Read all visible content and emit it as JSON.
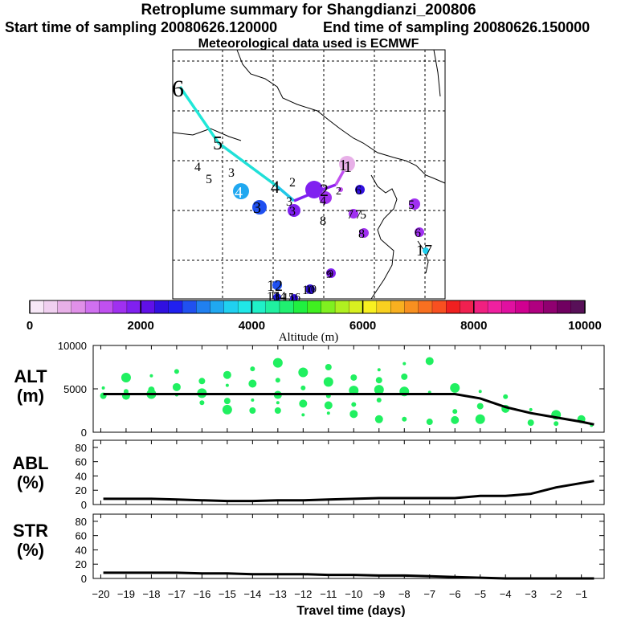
{
  "header": {
    "title": "Retroplume summary for Shangdianzi_200806",
    "start_label": "Start time of sampling 20080626.120000",
    "end_label": "End time of sampling 20080626.150000",
    "met_label": "Meteorological data used is ECMWF"
  },
  "colorbar": {
    "label": "Altitude (m)",
    "min": 0,
    "max": 10000,
    "ticks": [
      "0",
      "2000",
      "4000",
      "6000",
      "8000",
      "10000"
    ],
    "colors": [
      "#f7e8f7",
      "#f0d0f0",
      "#e8b0e8",
      "#e090e8",
      "#d070f0",
      "#c050f0",
      "#a030f0",
      "#8020f0",
      "#6010e8",
      "#3010e0",
      "#2020f0",
      "#2050f0",
      "#2080f0",
      "#20a8f0",
      "#20d0f0",
      "#20e8e8",
      "#20f0c8",
      "#20f0a0",
      "#20f070",
      "#20f040",
      "#40f020",
      "#80f020",
      "#b0f020",
      "#d8f020",
      "#f8f020",
      "#f8d020",
      "#f8b020",
      "#f89020",
      "#f87020",
      "#f85020",
      "#f02020",
      "#f02050",
      "#f02080",
      "#f020a0",
      "#e010a0",
      "#d00090",
      "#b00080",
      "#900070",
      "#700060",
      "#581058"
    ]
  },
  "map": {
    "track_labels": [
      "6",
      "5",
      "4",
      "4",
      "3",
      "4",
      "5",
      "3",
      "2",
      "1",
      "1",
      "2",
      "3",
      "2",
      "3",
      "4",
      "5",
      "6",
      "7",
      "8",
      "9",
      "8",
      "10",
      "7",
      "6",
      "5",
      "17",
      "12",
      "13",
      "14",
      "15",
      "16",
      "11",
      "10",
      "9"
    ],
    "note": "Retroplume centroid trajectory with cluster symbols sized by mass fraction"
  },
  "chart_data": [
    {
      "type": "line",
      "panel": "ALT",
      "ylabel_line1": "ALT",
      "ylabel_line2": "(m)",
      "ylim": [
        0,
        10000
      ],
      "yticks": [
        "0",
        "5000",
        "10000"
      ],
      "x": [
        -19.9,
        -19,
        -18,
        -17,
        -16,
        -15,
        -14,
        -13,
        -12,
        -11,
        -10,
        -9,
        -8,
        -7,
        -6,
        -5,
        -4,
        -3,
        -2,
        -1,
        -0.5
      ],
      "series": [
        {
          "name": "mean altitude",
          "values": [
            4400,
            4400,
            4400,
            4400,
            4400,
            4400,
            4400,
            4400,
            4400,
            4400,
            4400,
            4400,
            4400,
            4400,
            4400,
            3900,
            2900,
            2200,
            1700,
            1200,
            900
          ]
        }
      ],
      "clusters": [
        [
          -19.9,
          5100
        ],
        [
          -19.9,
          4200
        ],
        [
          -19,
          6300
        ],
        [
          -19,
          4700
        ],
        [
          -19,
          4200
        ],
        [
          -18,
          6500
        ],
        [
          -18,
          4900
        ],
        [
          -18,
          4400
        ],
        [
          -17,
          7000
        ],
        [
          -17,
          5200
        ],
        [
          -17,
          4300
        ],
        [
          -16,
          5900
        ],
        [
          -16,
          4500
        ],
        [
          -16,
          3400
        ],
        [
          -15,
          6600
        ],
        [
          -15,
          5400
        ],
        [
          -15,
          3600
        ],
        [
          -15,
          2600
        ],
        [
          -14,
          7300
        ],
        [
          -14,
          5600
        ],
        [
          -14,
          3700
        ],
        [
          -14,
          2500
        ],
        [
          -13,
          8000
        ],
        [
          -13,
          6000
        ],
        [
          -13,
          4300
        ],
        [
          -13,
          3400
        ],
        [
          -13,
          2500
        ],
        [
          -12,
          6900
        ],
        [
          -12,
          5100
        ],
        [
          -12,
          3300
        ],
        [
          -12,
          2000
        ],
        [
          -11,
          7500
        ],
        [
          -11,
          5800
        ],
        [
          -11,
          4200
        ],
        [
          -11,
          3100
        ],
        [
          -11,
          2200
        ],
        [
          -10,
          6300
        ],
        [
          -10,
          4800
        ],
        [
          -10,
          3200
        ],
        [
          -10,
          2100
        ],
        [
          -9,
          7200
        ],
        [
          -9,
          6000
        ],
        [
          -9,
          4900
        ],
        [
          -9,
          3700
        ],
        [
          -9,
          1500
        ],
        [
          -8,
          7900
        ],
        [
          -8,
          6400
        ],
        [
          -8,
          4700
        ],
        [
          -8,
          1500
        ],
        [
          -7,
          8200
        ],
        [
          -7,
          4600
        ],
        [
          -7,
          1200
        ],
        [
          -6,
          5100
        ],
        [
          -6,
          2400
        ],
        [
          -6,
          1400
        ],
        [
          -5,
          4700
        ],
        [
          -5,
          3000
        ],
        [
          -5,
          1500
        ],
        [
          -4,
          4100
        ],
        [
          -4,
          2700
        ],
        [
          -3,
          2600
        ],
        [
          -3,
          1100
        ],
        [
          -2,
          2000
        ],
        [
          -2,
          1000
        ],
        [
          -1,
          1500
        ],
        [
          -0.6,
          800
        ]
      ]
    },
    {
      "type": "line",
      "panel": "ABL",
      "ylabel_line1": "ABL",
      "ylabel_line2": "(%)",
      "ylim": [
        0,
        90
      ],
      "yticks": [
        "0",
        "20",
        "40",
        "60",
        "80"
      ],
      "x": [
        -19.9,
        -19,
        -18,
        -17,
        -16,
        -15,
        -14,
        -13,
        -12,
        -11,
        -10,
        -9,
        -8,
        -7,
        -6,
        -5,
        -4,
        -3,
        -2,
        -1,
        -0.5
      ],
      "series": [
        {
          "name": "fraction in ABL",
          "values": [
            8,
            8,
            8,
            7,
            6,
            5,
            5,
            6,
            6,
            7,
            8,
            9,
            9,
            9,
            9,
            12,
            12,
            15,
            24,
            30,
            33
          ]
        }
      ]
    },
    {
      "type": "line",
      "panel": "STR",
      "ylabel_line1": "STR",
      "ylabel_line2": "(%)",
      "ylim": [
        0,
        90
      ],
      "yticks": [
        "0",
        "20",
        "40",
        "60",
        "80"
      ],
      "x": [
        -19.9,
        -19,
        -18,
        -17,
        -16,
        -15,
        -14,
        -13,
        -12,
        -11,
        -10,
        -9,
        -8,
        -7,
        -6,
        -5,
        -4,
        -3,
        -2,
        -1,
        -0.5
      ],
      "series": [
        {
          "name": "fraction in stratosphere",
          "values": [
            8,
            8,
            8,
            8,
            7,
            7,
            6,
            6,
            6,
            5,
            5,
            4,
            4,
            3,
            2,
            1,
            0,
            0,
            0,
            0,
            0
          ]
        }
      ]
    }
  ],
  "xaxis": {
    "label": "Travel time (days)",
    "ticks": [
      "-20",
      "-19",
      "-18",
      "-17",
      "-16",
      "-15",
      "-14",
      "-13",
      "-12",
      "-11",
      "-10",
      "-9",
      "-8",
      "-7",
      "-6",
      "-5",
      "-4",
      "-3",
      "-2",
      "-1"
    ]
  }
}
